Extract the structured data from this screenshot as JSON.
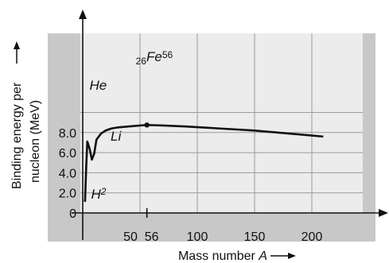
{
  "chart_data": {
    "type": "line",
    "xlabel": "Mass number",
    "xlabel_symbol": "A",
    "ylabel_line1": "Binding energy per",
    "ylabel_line2": "nucleon (MeV)",
    "xlim": [
      0,
      240
    ],
    "ylim": [
      0,
      10
    ],
    "x_ticks": [
      {
        "value": 50,
        "label": "50"
      },
      {
        "value": 56,
        "label": "56"
      },
      {
        "value": 100,
        "label": "100"
      },
      {
        "value": 150,
        "label": "150"
      },
      {
        "value": 200,
        "label": "200"
      }
    ],
    "y_ticks": [
      {
        "value": 0,
        "label": "0"
      },
      {
        "value": 2,
        "label": "2.0"
      },
      {
        "value": 4,
        "label": "4.0"
      },
      {
        "value": 6,
        "label": "6.0"
      },
      {
        "value": 8,
        "label": "8.0"
      }
    ],
    "grid": true,
    "series": [
      {
        "x": [
          2,
          3,
          4,
          6,
          8,
          10,
          12,
          16,
          20,
          25,
          30,
          40,
          50,
          56,
          70,
          90,
          120,
          150,
          180,
          210
        ],
        "y": [
          1.1,
          4.5,
          7.1,
          6.4,
          5.3,
          5.9,
          7.3,
          7.9,
          8.2,
          8.4,
          8.5,
          8.6,
          8.7,
          8.75,
          8.7,
          8.6,
          8.4,
          8.2,
          7.9,
          7.6
        ]
      }
    ],
    "annotations": {
      "h2": {
        "text": "H",
        "sup": "2",
        "x": 8,
        "y": 1.1
      },
      "he": {
        "text": "He",
        "x": 8,
        "y": 7.1
      },
      "li": {
        "text": "Li",
        "x": 16,
        "y": 5.0
      },
      "fe": {
        "pre": "26",
        "text": "Fe",
        "sup": "56",
        "x": 56,
        "y": 8.75
      }
    },
    "colors": {
      "background": "#c8c8c8",
      "plot": "#ececec",
      "grid": "#9a9a9a",
      "line": "#111111"
    }
  }
}
